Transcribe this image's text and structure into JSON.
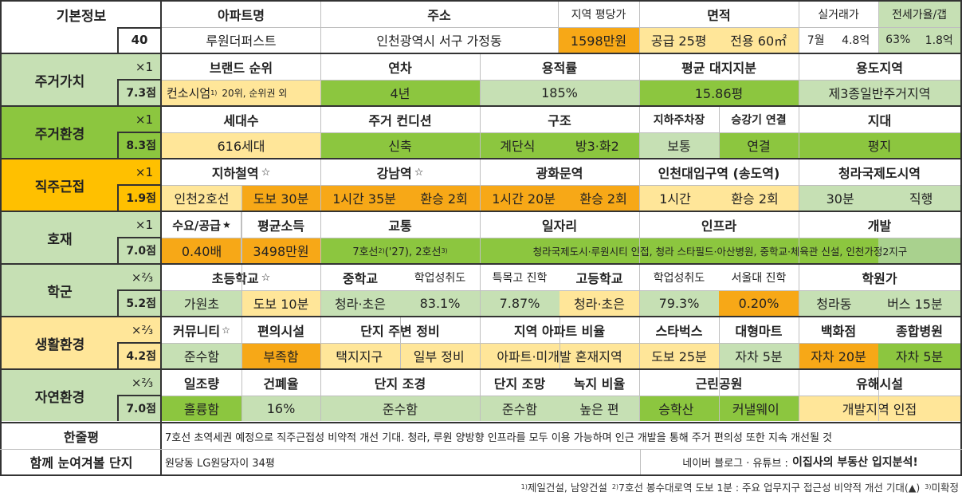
{
  "basic": {
    "label": "기본정보",
    "num": "40",
    "headers": [
      "아파트명",
      "주소",
      "지역 평당가",
      "면적",
      "실거래가",
      "전세가율/갭"
    ],
    "apt_name": "루원더퍼스트",
    "address": "인천광역시 서구 가정동",
    "price_per_py": "1598만원",
    "area_supply": "공급 25평",
    "area_exclusive": "전용 60㎡",
    "deal_month": "7월",
    "deal_price": "4.8억",
    "jeonse_rate": "63%",
    "gap": "1.8억"
  },
  "rows": [
    {
      "label": "주거가치",
      "mult": "×1",
      "score": "7.3점",
      "headers": [
        "브랜드 순위",
        "연차",
        "용적률",
        "평균 대지지분",
        "용도지역"
      ],
      "values": [
        "컨소시엄",
        "20위, 순위권 외",
        "4년",
        "185%",
        "15.86평",
        "제3종일반주거지역"
      ],
      "brand_mark": "1)"
    },
    {
      "label": "주거환경",
      "mult": "×1",
      "score": "8.3점",
      "headers": [
        "세대수",
        "주거 컨디션",
        "구조",
        "지하주차장",
        "승강기 연결",
        "지대"
      ],
      "values": [
        "616세대",
        "신축",
        "계단식",
        "방3·화2",
        "보통",
        "연결",
        "평지"
      ]
    },
    {
      "label": "직주근접",
      "mult": "×1",
      "score": "1.9점",
      "headers": [
        "지하철역",
        "강남역",
        "광화문역",
        "인천대입구역 (송도역)",
        "청라국제도시역"
      ],
      "star": "☆",
      "values": [
        "인천2호선",
        "도보 30분",
        "1시간 35분",
        "환승 2회",
        "1시간 20분",
        "환승 2회",
        "1시간",
        "환승 2회",
        "30분",
        "직행"
      ]
    },
    {
      "label": "호재",
      "mult": "×1",
      "score": "7.0점",
      "headers": [
        "수요/공급",
        "평균소득",
        "교통",
        "일자리",
        "인프라",
        "개발"
      ],
      "star": "★",
      "values": [
        "0.40배",
        "3498만원",
        "7호선",
        "('27), 2호선",
        "청라국제도시·루원시티 인접, 청라 스타필드·아산병원, 중학교·체육관 신설, 인천가정2지구"
      ],
      "marks": [
        "2)",
        "3)"
      ]
    },
    {
      "label": "학군",
      "mult": "×⅔",
      "score": "5.2점",
      "headers": [
        "초등학교",
        "중학교",
        "학업성취도",
        "특목고 진학",
        "고등학교",
        "학업성취도",
        "서울대 진학",
        "학원가"
      ],
      "star": "☆",
      "values": [
        "가원초",
        "도보 10분",
        "청라·초은",
        "83.1%",
        "7.87%",
        "청라·초은",
        "79.3%",
        "0.20%",
        "청라동",
        "버스 15분"
      ]
    },
    {
      "label": "생활환경",
      "mult": "×⅔",
      "score": "4.2점",
      "headers": [
        "커뮤니티",
        "편의시설",
        "단지 주변 정비",
        "지역 아파트 비율",
        "스타벅스",
        "대형마트",
        "백화점",
        "종합병원"
      ],
      "star": "☆",
      "values": [
        "준수함",
        "부족함",
        "택지지구",
        "일부 정비",
        "아파트·미개발 혼재지역",
        "도보 25분",
        "자차 5분",
        "자차 20분",
        "자차 5분"
      ]
    },
    {
      "label": "자연환경",
      "mult": "×⅔",
      "score": "7.0점",
      "headers": [
        "일조량",
        "건폐율",
        "단지 조경",
        "단지 조망",
        "녹지 비율",
        "근린공원",
        "유해시설"
      ],
      "values": [
        "훌륭함",
        "16%",
        "준수함",
        "준수함",
        "높은 편",
        "승학산",
        "커낼웨이",
        "개발지역 인접"
      ]
    }
  ],
  "summary": {
    "label": "한줄평",
    "text": "7호선 초역세권 예정으로 직주근접성 비약적 개선 기대. 청라, 루원 양방향 인프라를 모두 이용 가능하며 인근 개발을 통해 주거 편의성 또한 지속 개선될 것"
  },
  "compare": {
    "label": "함께 눈여겨볼 단지",
    "text": "원당동 LG원당자이 34평",
    "credit_prefix": "네이버 블로그 · 유튜브 :",
    "credit_bold": "이집사의 부동산 입지분석!"
  },
  "footnote": {
    "m1": "1)",
    "t1": "제일건설, 남양건설",
    "m2": "2)",
    "t2": "7호선 봉수대로역 도보 1분 : 주요 업무지구 접근성 비약적 개선 기대(▲)",
    "m3": "3)",
    "t3": "미확정"
  },
  "colors": {
    "green_light": "#c6e0b4",
    "green_dark": "#8cc63f",
    "yellow_light": "#ffe699",
    "orange": "#f7a817"
  }
}
